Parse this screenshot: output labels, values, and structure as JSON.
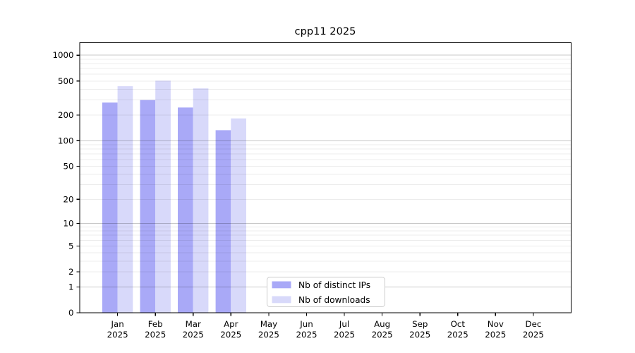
{
  "figure": {
    "background": "#ffffff"
  },
  "chart_data": {
    "type": "bar",
    "title": "cpp11 2025",
    "categories": [
      "Jan",
      "Feb",
      "Mar",
      "Apr",
      "May",
      "Jun",
      "Jul",
      "Aug",
      "Sep",
      "Oct",
      "Nov",
      "Dec"
    ],
    "category_year": "2025",
    "series": [
      {
        "name": "Nb of distinct IPs",
        "color": "#a9a9f7",
        "values": [
          280,
          300,
          245,
          133,
          null,
          null,
          null,
          null,
          null,
          null,
          null,
          null
        ]
      },
      {
        "name": "Nb of downloads",
        "color": "#d8d9fa",
        "values": [
          435,
          505,
          410,
          183,
          null,
          null,
          null,
          null,
          null,
          null,
          null,
          null
        ]
      }
    ],
    "xlabel": "",
    "ylabel": "",
    "yscale": "symlog-log1p",
    "yticks": [
      0,
      1,
      2,
      5,
      10,
      20,
      50,
      100,
      200,
      500,
      1000
    ],
    "ylim": [
      0,
      1400
    ],
    "grid": "horizontal, minor lines light gray, decade lines darker gray, drawn over bars",
    "legend_position": "inside-bottom-center",
    "colors": {
      "major_grid": "rgba(0,0,0,0.215)",
      "minor_grid": "rgba(0,0,0,0.075)",
      "spine": "#000000",
      "legend_border": "#cccccc",
      "legend_bg": "#ffffff"
    }
  }
}
